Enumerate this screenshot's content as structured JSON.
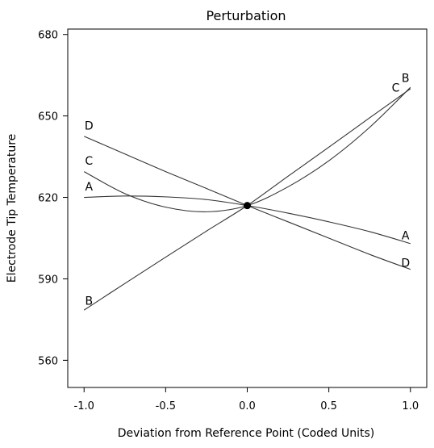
{
  "chart_data": {
    "type": "line",
    "title": "Perturbation",
    "xlabel": "Deviation from Reference Point (Coded Units)",
    "ylabel": "Electrode Tip Temperature",
    "xlim": [
      -1.1,
      1.1
    ],
    "ylim": [
      550,
      682
    ],
    "xticks": [
      -1.0,
      -0.5,
      0.0,
      0.5,
      1.0
    ],
    "xtick_labels": [
      "-1.0",
      "-0.5",
      "0.0",
      "0.5",
      "1.0"
    ],
    "yticks": [
      560,
      590,
      620,
      650,
      680
    ],
    "ytick_labels": [
      "560",
      "590",
      "620",
      "650",
      "680"
    ],
    "reference_point": {
      "x": 0.0,
      "y": 617
    },
    "series": [
      {
        "name": "A",
        "x": [
          -1.0,
          -0.75,
          -0.5,
          -0.25,
          0.0,
          0.25,
          0.5,
          0.75,
          1.0
        ],
        "y": [
          620,
          620.5,
          620.2,
          619.2,
          617,
          614.2,
          611,
          607.4,
          603
        ]
      },
      {
        "name": "B",
        "x": [
          -1.0,
          -0.75,
          -0.5,
          -0.25,
          0.0,
          0.25,
          0.5,
          0.75,
          1.0
        ],
        "y": [
          578.5,
          588.3,
          598,
          607.6,
          617,
          627.8,
          638.5,
          649.3,
          660
        ]
      },
      {
        "name": "C",
        "x": [
          -1.0,
          -0.75,
          -0.5,
          -0.25,
          0.0,
          0.25,
          0.5,
          0.75,
          1.0
        ],
        "y": [
          629.5,
          621.4,
          616.4,
          614.7,
          617,
          623.9,
          633.5,
          645.8,
          660.5
        ]
      },
      {
        "name": "D",
        "x": [
          -1.0,
          -0.75,
          -0.5,
          -0.25,
          0.0,
          0.25,
          0.5,
          0.75,
          1.0
        ],
        "y": [
          642.5,
          636,
          629.5,
          623.3,
          617,
          611,
          605,
          599,
          593.5
        ]
      }
    ],
    "curve_labels": [
      {
        "series": "A",
        "text": "A",
        "x": -0.97,
        "y": 622.5
      },
      {
        "series": "C",
        "text": "C",
        "x": -0.97,
        "y": 632
      },
      {
        "series": "D",
        "text": "D",
        "x": -0.97,
        "y": 645
      },
      {
        "series": "B",
        "text": "B",
        "x": -0.97,
        "y": 580.5
      },
      {
        "series": "A",
        "text": "A",
        "x": 0.97,
        "y": 604.5
      },
      {
        "series": "D",
        "text": "D",
        "x": 0.97,
        "y": 594.5
      },
      {
        "series": "C",
        "text": "C",
        "x": 0.91,
        "y": 659
      },
      {
        "series": "B",
        "text": "B",
        "x": 0.97,
        "y": 662.5
      }
    ],
    "grid": false,
    "legend": "none",
    "line_color": "#333333"
  }
}
